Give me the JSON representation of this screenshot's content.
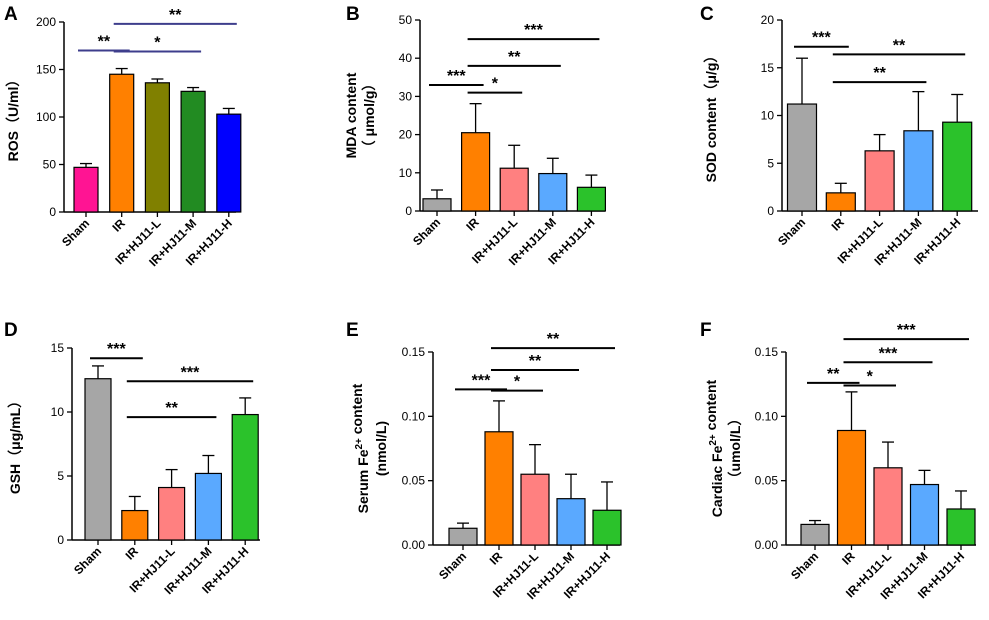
{
  "figure": {
    "categories": [
      "Sham",
      "IR",
      "IR+HJ11-L",
      "IR+HJ11-M",
      "IR+HJ11-H"
    ]
  },
  "chart_data": [
    {
      "panel": "A",
      "type": "bar",
      "ylabel_lines": [
        "ROS（U/ml）"
      ],
      "ylim": [
        0,
        200
      ],
      "yticks": [
        0,
        50,
        100,
        150,
        200
      ],
      "yticks_text": [
        "0",
        "50",
        "100",
        "150",
        "200"
      ],
      "series": [
        {
          "name": "ROS",
          "values": [
            47,
            145,
            136,
            127,
            103
          ],
          "errors": [
            4,
            6,
            4,
            4,
            6
          ]
        }
      ],
      "bar_colors": [
        "#ff1493",
        "#ff8000",
        "#808000",
        "#228b22",
        "#0000ff"
      ],
      "sig_color": "#3e3e8c",
      "significance": [
        {
          "from": 0,
          "to": 1,
          "level": 170,
          "label": "**"
        },
        {
          "from": 1,
          "to": 3,
          "level": 169,
          "label": "*"
        },
        {
          "from": 1,
          "to": 4,
          "level": 198,
          "label": "**"
        }
      ]
    },
    {
      "panel": "B",
      "type": "bar",
      "ylabel_lines": [
        "MDA  content",
        "（ μmol/g）"
      ],
      "ylim": [
        0,
        50
      ],
      "yticks": [
        0,
        10,
        20,
        30,
        40,
        50
      ],
      "yticks_text": [
        "0",
        "10",
        "20",
        "30",
        "40",
        "50"
      ],
      "series": [
        {
          "name": "MDA",
          "values": [
            3.2,
            20.5,
            11.2,
            9.8,
            6.2
          ],
          "errors": [
            2.3,
            7.6,
            6.0,
            4.0,
            3.2
          ]
        }
      ],
      "bar_colors": [
        "#a6a6a6",
        "#ff8000",
        "#ff8080",
        "#5aa9ff",
        "#2bc22b"
      ],
      "sig_color": "#000000",
      "significance": [
        {
          "from": 0,
          "to": 1,
          "level": 33,
          "label": "***"
        },
        {
          "from": 1,
          "to": 2,
          "level": 31,
          "label": "*"
        },
        {
          "from": 1,
          "to": 3,
          "level": 38,
          "label": "**"
        },
        {
          "from": 1,
          "to": 4,
          "level": 45,
          "label": "***"
        }
      ]
    },
    {
      "panel": "C",
      "type": "bar",
      "ylabel_lines": [
        "SOD  content（μ/g）"
      ],
      "ylim": [
        0,
        20
      ],
      "yticks": [
        0,
        5,
        10,
        15,
        20
      ],
      "yticks_text": [
        "0",
        "5",
        "10",
        "15",
        "20"
      ],
      "series": [
        {
          "name": "SOD",
          "values": [
            11.2,
            1.9,
            6.3,
            8.4,
            9.3
          ],
          "errors": [
            4.8,
            1.0,
            1.7,
            4.1,
            2.9
          ]
        }
      ],
      "bar_colors": [
        "#a6a6a6",
        "#ff8000",
        "#ff8080",
        "#5aa9ff",
        "#2bc22b"
      ],
      "sig_color": "#000000",
      "significance": [
        {
          "from": 0,
          "to": 1,
          "level": 17.2,
          "label": "***"
        },
        {
          "from": 1,
          "to": 3,
          "level": 13.5,
          "label": "**"
        },
        {
          "from": 1,
          "to": 4,
          "level": 16.4,
          "label": "**"
        }
      ]
    },
    {
      "panel": "D",
      "type": "bar",
      "ylabel_lines": [
        "GSH（μg/mL）"
      ],
      "ylim": [
        0,
        15
      ],
      "yticks": [
        0,
        5,
        10,
        15
      ],
      "yticks_text": [
        "0",
        "5",
        "10",
        "15"
      ],
      "series": [
        {
          "name": "GSH",
          "values": [
            12.6,
            2.3,
            4.1,
            5.2,
            9.8
          ],
          "errors": [
            1.0,
            1.1,
            1.4,
            1.4,
            1.3
          ]
        }
      ],
      "bar_colors": [
        "#a6a6a6",
        "#ff8000",
        "#ff8080",
        "#5aa9ff",
        "#2bc22b"
      ],
      "sig_color": "#000000",
      "significance": [
        {
          "from": 0,
          "to": 1,
          "level": 14.2,
          "label": "***"
        },
        {
          "from": 1,
          "to": 3,
          "level": 9.6,
          "label": "**"
        },
        {
          "from": 1,
          "to": 4,
          "level": 12.4,
          "label": "***"
        }
      ]
    },
    {
      "panel": "E",
      "type": "bar",
      "ylabel_lines": [
        "Serum Fe2+ content",
        "(nmol/L)"
      ],
      "ylim": [
        0,
        0.15
      ],
      "yticks": [
        0,
        0.05,
        0.1,
        0.15
      ],
      "yticks_text": [
        "0.00",
        "0.05",
        "0.10",
        "0.15"
      ],
      "series": [
        {
          "name": "Serum Fe2+",
          "values": [
            0.013,
            0.088,
            0.055,
            0.036,
            0.027
          ],
          "errors": [
            0.004,
            0.024,
            0.023,
            0.019,
            0.022
          ]
        }
      ],
      "bar_colors": [
        "#a6a6a6",
        "#ff8000",
        "#ff8080",
        "#5aa9ff",
        "#2bc22b"
      ],
      "sig_color": "#000000",
      "significance": [
        {
          "from": 0,
          "to": 1,
          "level": 0.121,
          "label": "***"
        },
        {
          "from": 1,
          "to": 2,
          "level": 0.12,
          "label": "*"
        },
        {
          "from": 1,
          "to": 3,
          "level": 0.136,
          "label": "**"
        },
        {
          "from": 1,
          "to": 4,
          "level": 0.153,
          "label": "**"
        }
      ]
    },
    {
      "panel": "F",
      "type": "bar",
      "ylabel_lines": [
        "Cardiac Fe2+ content",
        "（umol/L）"
      ],
      "ylim": [
        0,
        0.15
      ],
      "yticks": [
        0,
        0.05,
        0.1,
        0.15
      ],
      "yticks_text": [
        "0.00",
        "0.05",
        "0.10",
        "0.15"
      ],
      "series": [
        {
          "name": "Cardiac Fe2+",
          "values": [
            0.016,
            0.089,
            0.06,
            0.047,
            0.028
          ],
          "errors": [
            0.003,
            0.03,
            0.02,
            0.011,
            0.014
          ]
        }
      ],
      "bar_colors": [
        "#a6a6a6",
        "#ff8000",
        "#ff8080",
        "#5aa9ff",
        "#2bc22b"
      ],
      "sig_color": "#000000",
      "significance": [
        {
          "from": 0,
          "to": 1,
          "level": 0.126,
          "label": "**"
        },
        {
          "from": 1,
          "to": 2,
          "level": 0.124,
          "label": "*"
        },
        {
          "from": 1,
          "to": 3,
          "level": 0.142,
          "label": "***"
        },
        {
          "from": 1,
          "to": 4,
          "level": 0.16,
          "label": "***"
        }
      ]
    }
  ]
}
